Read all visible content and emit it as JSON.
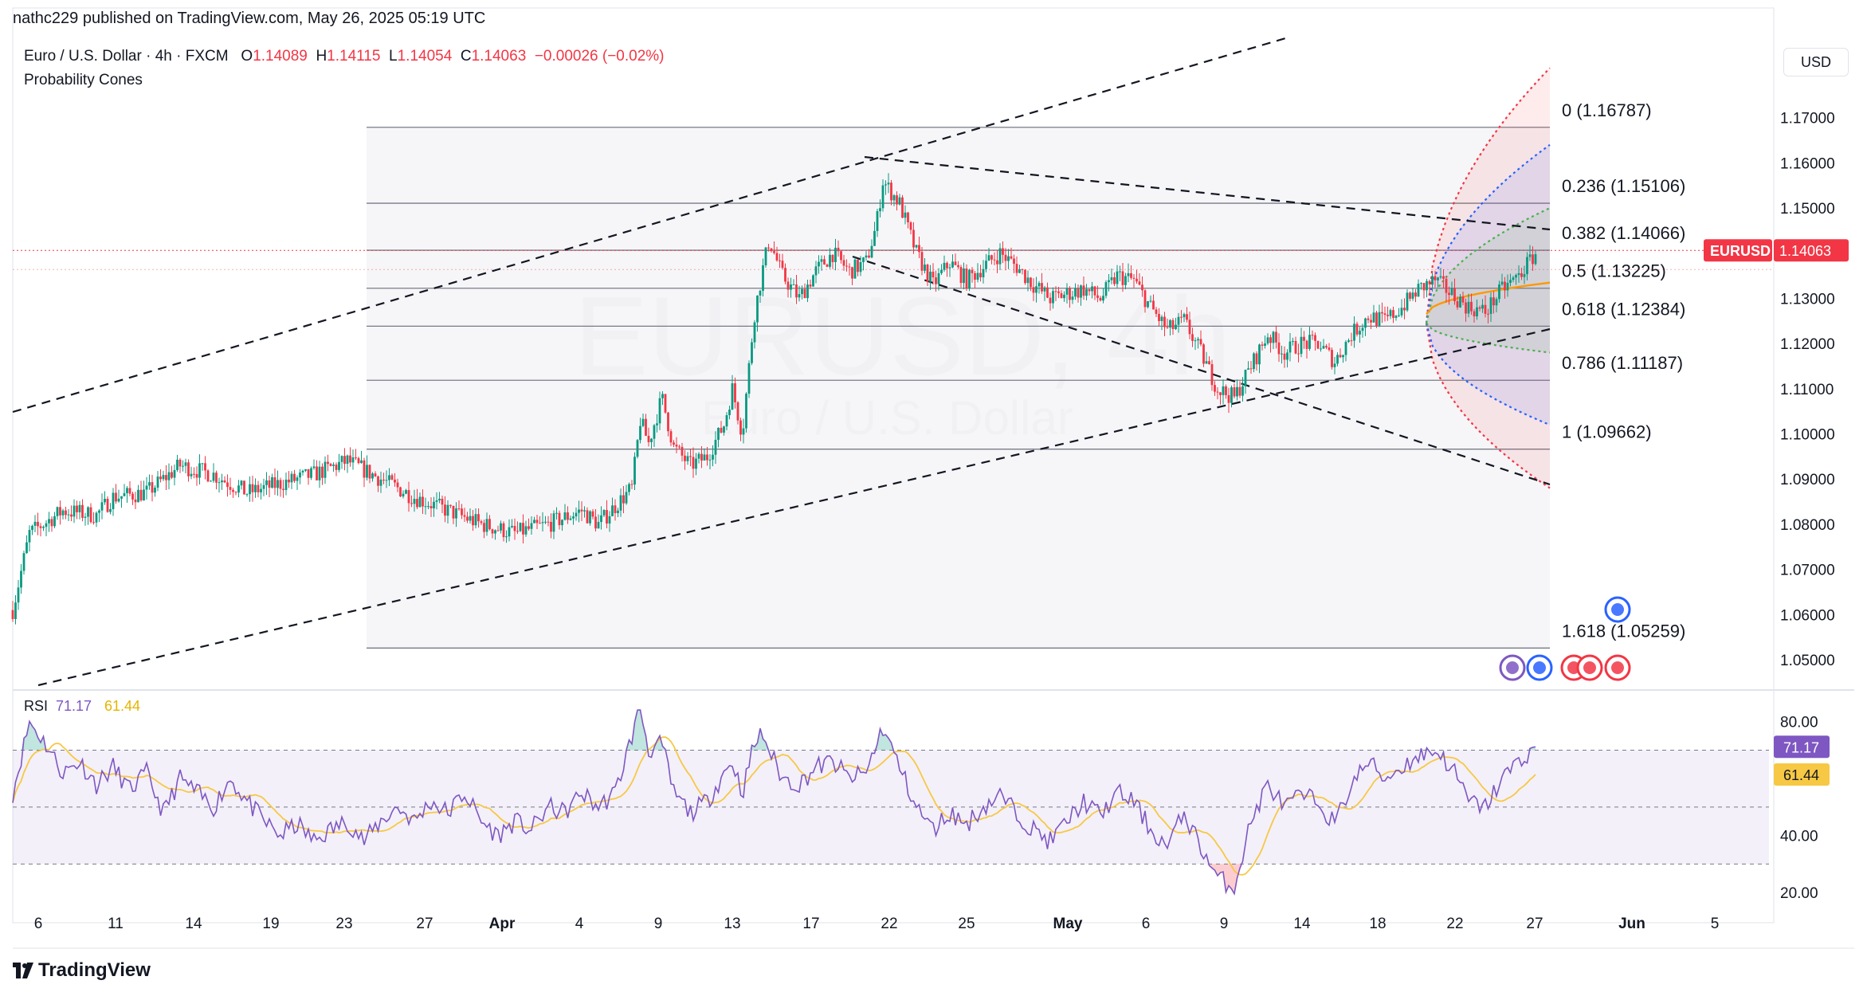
{
  "header": {
    "published": "nathc229 published on TradingView.com, May 26, 2025 05:19 UTC",
    "symbol": "Euro / U.S. Dollar · 4h · FXCM",
    "o_label": "O",
    "o": "1.14089",
    "h_label": "H",
    "h": "1.14115",
    "l_label": "L",
    "l": "1.14054",
    "c_label": "C",
    "c": "1.14063",
    "change": "−0.00026 (−0.02%)",
    "indicator": "Probability Cones",
    "currency": "USD"
  },
  "watermark": {
    "symbol": "EURUSD, 4h",
    "name": "Euro / U.S. Dollar"
  },
  "brand": "TradingView",
  "colors": {
    "up": "#089981",
    "down": "#f23645",
    "rsi": "#7e57c2",
    "rsi_ma": "#f7c844",
    "cone_red": "#f23645",
    "cone_blue": "#2962ff",
    "cone_green": "#4caf50",
    "cone_orange": "#ff9800"
  },
  "chart_data": [
    {
      "type": "candlestick",
      "symbol": "EURUSD",
      "timeframe": "4h",
      "ylim": [
        1.044,
        1.189
      ],
      "y_ticks": [
        "1.17000",
        "1.16000",
        "1.15000",
        "1.14000",
        "1.13000",
        "1.12000",
        "1.11000",
        "1.10000",
        "1.09000",
        "1.08000",
        "1.07000",
        "1.06000",
        "1.05000"
      ],
      "y_tick_values": [
        1.17,
        1.16,
        1.15,
        1.14,
        1.13,
        1.12,
        1.11,
        1.1,
        1.09,
        1.08,
        1.07,
        1.06,
        1.05
      ],
      "x_ticks": [
        "6",
        "11",
        "14",
        "19",
        "23",
        "27",
        "Apr",
        "4",
        "9",
        "13",
        "17",
        "22",
        "25",
        "May",
        "6",
        "9",
        "14",
        "18",
        "22",
        "27",
        "Jun",
        "5"
      ],
      "x_tick_bold": [
        "Apr",
        "May",
        "Jun"
      ],
      "price_path": [
        {
          "d": 0,
          "p": 1.061
        },
        {
          "d": 1,
          "p": 1.078
        },
        {
          "d": 3,
          "p": 1.083
        },
        {
          "d": 5,
          "p": 1.082
        },
        {
          "d": 6,
          "p": 1.086
        },
        {
          "d": 8,
          "p": 1.087
        },
        {
          "d": 10,
          "p": 1.093
        },
        {
          "d": 12,
          "p": 1.091
        },
        {
          "d": 14,
          "p": 1.087
        },
        {
          "d": 16,
          "p": 1.089
        },
        {
          "d": 18,
          "p": 1.091
        },
        {
          "d": 20,
          "p": 1.094
        },
        {
          "d": 22,
          "p": 1.09
        },
        {
          "d": 24,
          "p": 1.086
        },
        {
          "d": 26,
          "p": 1.083
        },
        {
          "d": 28,
          "p": 1.08
        },
        {
          "d": 30,
          "p": 1.078
        },
        {
          "d": 32,
          "p": 1.08
        },
        {
          "d": 34,
          "p": 1.083
        },
        {
          "d": 35,
          "p": 1.08
        },
        {
          "d": 36,
          "p": 1.084
        },
        {
          "d": 37,
          "p": 1.088
        },
        {
          "d": 37.5,
          "p": 1.103
        },
        {
          "d": 38,
          "p": 1.098
        },
        {
          "d": 38.8,
          "p": 1.108
        },
        {
          "d": 39.5,
          "p": 1.097
        },
        {
          "d": 40.5,
          "p": 1.093
        },
        {
          "d": 41.5,
          "p": 1.095
        },
        {
          "d": 42.5,
          "p": 1.102
        },
        {
          "d": 43,
          "p": 1.11
        },
        {
          "d": 43.6,
          "p": 1.1
        },
        {
          "d": 44.3,
          "p": 1.126
        },
        {
          "d": 44.8,
          "p": 1.136
        },
        {
          "d": 45.2,
          "p": 1.143
        },
        {
          "d": 46,
          "p": 1.135
        },
        {
          "d": 47,
          "p": 1.13
        },
        {
          "d": 48,
          "p": 1.136
        },
        {
          "d": 49,
          "p": 1.14
        },
        {
          "d": 50,
          "p": 1.136
        },
        {
          "d": 51,
          "p": 1.138
        },
        {
          "d": 51.6,
          "p": 1.146
        },
        {
          "d": 52,
          "p": 1.156
        },
        {
          "d": 53,
          "p": 1.151
        },
        {
          "d": 54,
          "p": 1.14
        },
        {
          "d": 55,
          "p": 1.133
        },
        {
          "d": 56,
          "p": 1.138
        },
        {
          "d": 57,
          "p": 1.134
        },
        {
          "d": 58,
          "p": 1.137
        },
        {
          "d": 59,
          "p": 1.14
        },
        {
          "d": 60,
          "p": 1.137
        },
        {
          "d": 61,
          "p": 1.133
        },
        {
          "d": 62,
          "p": 1.13
        },
        {
          "d": 63,
          "p": 1.131
        },
        {
          "d": 64,
          "p": 1.132
        },
        {
          "d": 65,
          "p": 1.13
        },
        {
          "d": 66,
          "p": 1.135
        },
        {
          "d": 67,
          "p": 1.134
        },
        {
          "d": 68,
          "p": 1.128
        },
        {
          "d": 69,
          "p": 1.123
        },
        {
          "d": 70,
          "p": 1.125
        },
        {
          "d": 71,
          "p": 1.118
        },
        {
          "d": 72,
          "p": 1.11
        },
        {
          "d": 73,
          "p": 1.108
        },
        {
          "d": 74,
          "p": 1.115
        },
        {
          "d": 75,
          "p": 1.122
        },
        {
          "d": 76,
          "p": 1.118
        },
        {
          "d": 77,
          "p": 1.12
        },
        {
          "d": 78,
          "p": 1.12
        },
        {
          "d": 79,
          "p": 1.116
        },
        {
          "d": 80,
          "p": 1.122
        },
        {
          "d": 81,
          "p": 1.126
        },
        {
          "d": 82,
          "p": 1.125
        },
        {
          "d": 83,
          "p": 1.128
        },
        {
          "d": 84,
          "p": 1.132
        },
        {
          "d": 85,
          "p": 1.134
        },
        {
          "d": 86,
          "p": 1.131
        },
        {
          "d": 87,
          "p": 1.128
        },
        {
          "d": 88,
          "p": 1.127
        },
        {
          "d": 89,
          "p": 1.132
        },
        {
          "d": 90,
          "p": 1.135
        },
        {
          "d": 91,
          "p": 1.14
        }
      ],
      "last_price": 1.14063,
      "last_label": "EURUSD",
      "last_value": "1.14063"
    },
    {
      "type": "fibonacci_retracement",
      "levels": [
        {
          "label": "0 (1.16787)",
          "value": 1.16787
        },
        {
          "label": "0.236 (1.15106)",
          "value": 1.15106
        },
        {
          "label": "0.382 (1.14066)",
          "value": 1.14066
        },
        {
          "label": "0.5 (1.13225)",
          "value": 1.13225
        },
        {
          "label": "0.618 (1.12384)",
          "value": 1.12384
        },
        {
          "label": "0.786 (1.11187)",
          "value": 1.11187
        },
        {
          "label": "1 (1.09662)",
          "value": 1.09662
        },
        {
          "label": "1.618 (1.05259)",
          "value": 1.05259
        }
      ]
    },
    {
      "type": "line",
      "name": "RSI",
      "legend_label": "RSI",
      "rsi_value": "71.17",
      "ma_value": "61.44",
      "ylim": [
        15,
        90
      ],
      "y_ticks": [
        "80.00",
        "40.00",
        "20.00"
      ],
      "y_tick_values": [
        80,
        40,
        20
      ],
      "bands": [
        70,
        50,
        30
      ],
      "rsi_path": [
        {
          "d": 0,
          "v": 55
        },
        {
          "d": 1,
          "v": 80
        },
        {
          "d": 2,
          "v": 72
        },
        {
          "d": 3,
          "v": 62
        },
        {
          "d": 4,
          "v": 66
        },
        {
          "d": 5,
          "v": 58
        },
        {
          "d": 6,
          "v": 64
        },
        {
          "d": 7,
          "v": 56
        },
        {
          "d": 8,
          "v": 62
        },
        {
          "d": 9,
          "v": 48
        },
        {
          "d": 10,
          "v": 60
        },
        {
          "d": 11,
          "v": 55
        },
        {
          "d": 12,
          "v": 50
        },
        {
          "d": 13,
          "v": 60
        },
        {
          "d": 14,
          "v": 52
        },
        {
          "d": 15,
          "v": 45
        },
        {
          "d": 16,
          "v": 40
        },
        {
          "d": 17,
          "v": 44
        },
        {
          "d": 18,
          "v": 38
        },
        {
          "d": 19,
          "v": 42
        },
        {
          "d": 20,
          "v": 45
        },
        {
          "d": 21,
          "v": 38
        },
        {
          "d": 22,
          "v": 45
        },
        {
          "d": 23,
          "v": 50
        },
        {
          "d": 24,
          "v": 45
        },
        {
          "d": 25,
          "v": 52
        },
        {
          "d": 26,
          "v": 48
        },
        {
          "d": 27,
          "v": 55
        },
        {
          "d": 28,
          "v": 45
        },
        {
          "d": 29,
          "v": 40
        },
        {
          "d": 30,
          "v": 45
        },
        {
          "d": 31,
          "v": 42
        },
        {
          "d": 32,
          "v": 50
        },
        {
          "d": 33,
          "v": 48
        },
        {
          "d": 34,
          "v": 55
        },
        {
          "d": 35,
          "v": 50
        },
        {
          "d": 36,
          "v": 55
        },
        {
          "d": 37,
          "v": 75
        },
        {
          "d": 37.5,
          "v": 85
        },
        {
          "d": 38,
          "v": 70
        },
        {
          "d": 38.8,
          "v": 72
        },
        {
          "d": 39.5,
          "v": 55
        },
        {
          "d": 40.5,
          "v": 48
        },
        {
          "d": 41.5,
          "v": 52
        },
        {
          "d": 42.5,
          "v": 62
        },
        {
          "d": 43,
          "v": 66
        },
        {
          "d": 43.6,
          "v": 55
        },
        {
          "d": 44.3,
          "v": 72
        },
        {
          "d": 44.8,
          "v": 76
        },
        {
          "d": 45.2,
          "v": 70
        },
        {
          "d": 46,
          "v": 60
        },
        {
          "d": 47,
          "v": 58
        },
        {
          "d": 48,
          "v": 64
        },
        {
          "d": 49,
          "v": 66
        },
        {
          "d": 50,
          "v": 60
        },
        {
          "d": 51,
          "v": 62
        },
        {
          "d": 51.6,
          "v": 72
        },
        {
          "d": 52,
          "v": 78
        },
        {
          "d": 53,
          "v": 64
        },
        {
          "d": 54,
          "v": 50
        },
        {
          "d": 55,
          "v": 42
        },
        {
          "d": 56,
          "v": 48
        },
        {
          "d": 57,
          "v": 44
        },
        {
          "d": 58,
          "v": 50
        },
        {
          "d": 59,
          "v": 54
        },
        {
          "d": 60,
          "v": 48
        },
        {
          "d": 61,
          "v": 42
        },
        {
          "d": 62,
          "v": 38
        },
        {
          "d": 63,
          "v": 45
        },
        {
          "d": 64,
          "v": 52
        },
        {
          "d": 65,
          "v": 47
        },
        {
          "d": 66,
          "v": 55
        },
        {
          "d": 67,
          "v": 52
        },
        {
          "d": 68,
          "v": 42
        },
        {
          "d": 69,
          "v": 36
        },
        {
          "d": 70,
          "v": 48
        },
        {
          "d": 71,
          "v": 36
        },
        {
          "d": 72,
          "v": 25
        },
        {
          "d": 73,
          "v": 22
        },
        {
          "d": 74,
          "v": 45
        },
        {
          "d": 75,
          "v": 58
        },
        {
          "d": 76,
          "v": 50
        },
        {
          "d": 77,
          "v": 54
        },
        {
          "d": 78,
          "v": 52
        },
        {
          "d": 79,
          "v": 44
        },
        {
          "d": 80,
          "v": 58
        },
        {
          "d": 81,
          "v": 66
        },
        {
          "d": 82,
          "v": 60
        },
        {
          "d": 83,
          "v": 64
        },
        {
          "d": 84,
          "v": 68
        },
        {
          "d": 85,
          "v": 70
        },
        {
          "d": 86,
          "v": 64
        },
        {
          "d": 87,
          "v": 52
        },
        {
          "d": 88,
          "v": 50
        },
        {
          "d": 89,
          "v": 60
        },
        {
          "d": 90,
          "v": 66
        },
        {
          "d": 91,
          "v": 71.17
        }
      ]
    }
  ]
}
